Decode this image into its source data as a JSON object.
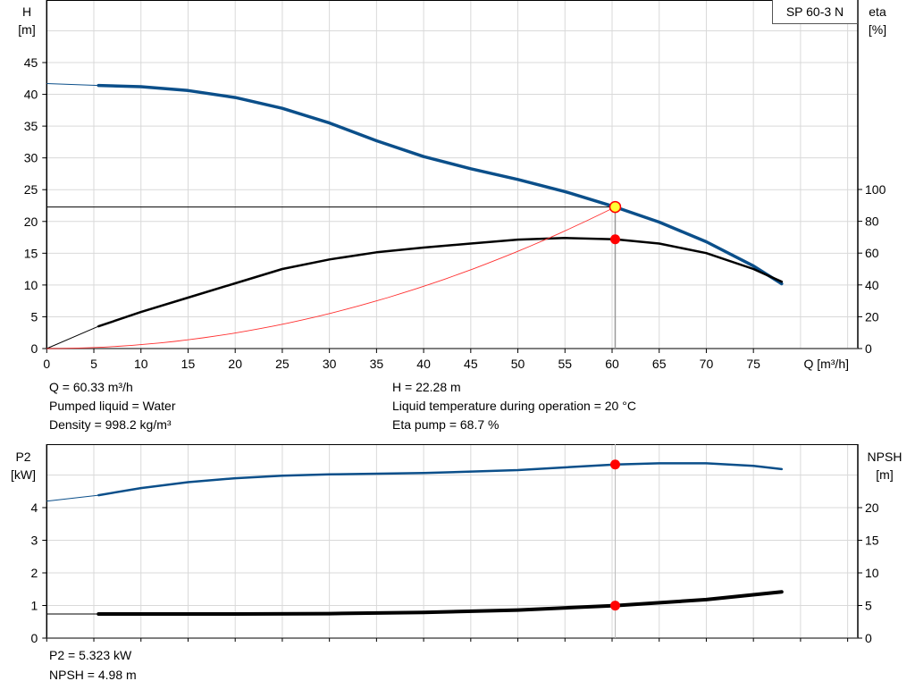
{
  "pump_label": "SP 60-3 N",
  "colors": {
    "head_curve": "#0b4f8a",
    "eta_curve": "#000000",
    "system_curve": "#ff3030",
    "duty_point": "#ff0000",
    "duty_point_fill": "#ffff33",
    "grid": "#d9d9d9"
  },
  "info_top": {
    "q": "Q = 60.33 m³/h",
    "liquid": "Pumped liquid = Water",
    "density": "Density = 998.2 kg/m³",
    "h": "H = 22.28 m",
    "temp": "Liquid temperature during operation = 20 °C",
    "eta": "Eta pump = 68.7 %"
  },
  "info_bottom": {
    "p2": "P2 = 5.323 kW",
    "npsh": "NPSH = 4.98 m"
  },
  "chart_data": [
    {
      "type": "line",
      "title": "",
      "xlabel": "Q [m³/h]",
      "ylabel_left": "H",
      "ylabel_left_unit": "[m]",
      "ylabel_right": "eta",
      "ylabel_right_unit": "[%]",
      "xlim": [
        0,
        85
      ],
      "ylim_left": [
        0,
        50
      ],
      "ylim_right": [
        0,
        100
      ],
      "x_ticks": [
        0,
        5,
        10,
        15,
        20,
        25,
        30,
        35,
        40,
        45,
        50,
        55,
        60,
        65,
        70,
        75
      ],
      "y_left_ticks": [
        0,
        5,
        10,
        15,
        20,
        25,
        30,
        35,
        40,
        45
      ],
      "y_right_ticks": [
        0,
        20,
        40,
        60,
        80,
        100
      ],
      "grid": true,
      "series": [
        {
          "name": "H",
          "axis": "left",
          "x": [
            5.5,
            10,
            15,
            20,
            25,
            30,
            35,
            40,
            45,
            50,
            55,
            60.33,
            65,
            70,
            75,
            78
          ],
          "y": [
            41.4,
            41.2,
            40.6,
            39.5,
            37.8,
            35.5,
            32.7,
            30.2,
            28.3,
            26.6,
            24.7,
            22.28,
            19.9,
            16.8,
            13.0,
            10.2
          ],
          "extrapolated": {
            "x": [
              0,
              5.5
            ],
            "y": [
              41.7,
              41.4
            ]
          }
        },
        {
          "name": "eta",
          "axis": "right",
          "x": [
            5.5,
            10,
            15,
            20,
            25,
            30,
            35,
            40,
            45,
            50,
            55,
            60.33,
            65,
            70,
            75,
            78
          ],
          "y": [
            14,
            23,
            32,
            41,
            50,
            56,
            60.5,
            63.5,
            66,
            68.5,
            69.5,
            68.7,
            66,
            60,
            50,
            42
          ],
          "extrapolated": {
            "x": [
              0,
              5.5
            ],
            "y": [
              0,
              14
            ]
          }
        },
        {
          "name": "system",
          "axis": "left",
          "x": [
            0,
            10,
            20,
            30,
            40,
            50,
            60.33
          ],
          "y": [
            0,
            0.61,
            2.45,
            5.51,
            9.79,
            15.3,
            22.28
          ]
        }
      ],
      "duty_point": {
        "q": 60.33,
        "h": 22.28,
        "eta": 68.7
      }
    },
    {
      "type": "line",
      "title": "",
      "ylabel_left": "P2",
      "ylabel_left_unit": "[kW]",
      "ylabel_right": "NPSH",
      "ylabel_right_unit": "[m]",
      "xlim": [
        0,
        85
      ],
      "ylim_left": [
        0,
        5
      ],
      "ylim_right": [
        0,
        25
      ],
      "y_left_ticks": [
        0,
        1,
        2,
        3,
        4
      ],
      "y_right_ticks": [
        0,
        5,
        10,
        15,
        20
      ],
      "grid": true,
      "series": [
        {
          "name": "P2",
          "axis": "left",
          "x": [
            5.5,
            10,
            15,
            20,
            25,
            30,
            40,
            50,
            60.33,
            65,
            70,
            75,
            78
          ],
          "y": [
            4.38,
            4.6,
            4.78,
            4.9,
            4.98,
            5.02,
            5.06,
            5.15,
            5.323,
            5.36,
            5.36,
            5.28,
            5.18
          ],
          "extrapolated": {
            "x": [
              0,
              5.5
            ],
            "y": [
              4.2,
              4.38
            ]
          }
        },
        {
          "name": "NPSH",
          "axis": "right",
          "x": [
            5.5,
            20,
            30,
            40,
            50,
            60.33,
            70,
            78
          ],
          "y": [
            3.7,
            3.7,
            3.75,
            3.95,
            4.3,
            4.98,
            5.9,
            7.1
          ],
          "extrapolated": {
            "x": [
              0,
              5.5
            ],
            "y": [
              3.7,
              3.7
            ]
          }
        }
      ],
      "duty_point": {
        "q": 60.33,
        "p2": 5.323,
        "npsh": 4.98
      }
    }
  ]
}
